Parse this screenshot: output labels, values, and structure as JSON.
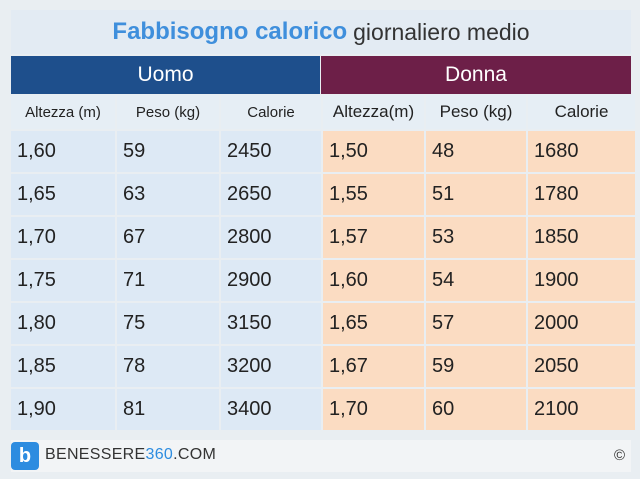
{
  "title": {
    "bold": "Fabbisogno calorico",
    "rest": "giornaliero medio"
  },
  "groups": {
    "uomo": "Uomo",
    "donna": "Donna"
  },
  "columns": {
    "uomo": [
      "Altezza (m)",
      "Peso (kg)",
      "Calorie"
    ],
    "donna": [
      "Altezza(m)",
      "Peso (kg)",
      "Calorie"
    ]
  },
  "rows": [
    {
      "u": [
        "1,60",
        "59",
        "2450"
      ],
      "d": [
        "1,50",
        "48",
        "1680"
      ]
    },
    {
      "u": [
        "1,65",
        "63",
        "2650"
      ],
      "d": [
        "1,55",
        "51",
        "1780"
      ]
    },
    {
      "u": [
        "1,70",
        "67",
        "2800"
      ],
      "d": [
        "1,57",
        "53",
        "1850"
      ]
    },
    {
      "u": [
        "1,75",
        "71",
        "2900"
      ],
      "d": [
        "1,60",
        "54",
        "1900"
      ]
    },
    {
      "u": [
        "1,80",
        "75",
        "3150"
      ],
      "d": [
        "1,65",
        "57",
        "2000"
      ]
    },
    {
      "u": [
        "1,85",
        "78",
        "3200"
      ],
      "d": [
        "1,67",
        "59",
        "2050"
      ]
    },
    {
      "u": [
        "1,90",
        "81",
        "3400"
      ],
      "d": [
        "1,70",
        "60",
        "2100"
      ]
    }
  ],
  "footer": {
    "logo_letter": "b",
    "brand_prefix": "BENESSERE",
    "brand_number": "360",
    "brand_suffix": ".COM",
    "copyright": "©"
  },
  "colors": {
    "title": "#3f8fdc",
    "uomo_header": "#1e4f8c",
    "donna_header": "#6d1f48",
    "uomo_cell": "#dde9f5",
    "donna_cell": "#fbdcc2"
  }
}
